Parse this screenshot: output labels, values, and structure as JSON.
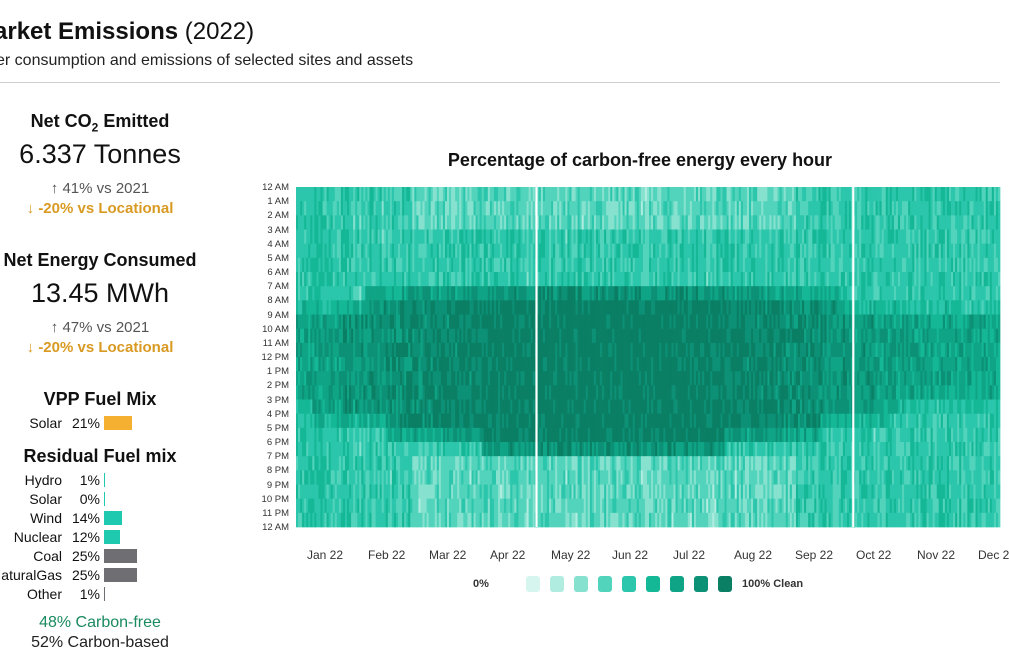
{
  "header": {
    "title_main": "arket Emissions",
    "title_year": "(2022)",
    "subtitle": "er consumption and emissions of selected sites and assets"
  },
  "kpis": {
    "co2": {
      "label_prefix": "Net CO",
      "label_sub": "2",
      "label_suffix": " Emitted",
      "value": "6.337 Tonnes",
      "yoy": "41% vs 2021",
      "locational": "-20% vs Locational"
    },
    "energy": {
      "label": "Net Energy Consumed",
      "value": "13.45 MWh",
      "yoy": "47% vs 2021",
      "locational": "-20% vs Locational"
    },
    "arrows": {
      "up": "↑",
      "down": "↓"
    }
  },
  "vpp_mix": {
    "title": "VPP Fuel Mix",
    "items": [
      {
        "name": "Solar",
        "pct": "21%",
        "value": 21,
        "color": "#f5b031"
      }
    ]
  },
  "residual_mix": {
    "title": "Residual Fuel mix",
    "items": [
      {
        "name": "Hydro",
        "pct": "1%",
        "value": 1,
        "color": "#1fc9b0"
      },
      {
        "name": "Solar",
        "pct": "0%",
        "value": 0,
        "color": "#1fc9b0"
      },
      {
        "name": "Wind",
        "pct": "14%",
        "value": 14,
        "color": "#1fc9b0"
      },
      {
        "name": "Nuclear",
        "pct": "12%",
        "value": 12,
        "color": "#1fc9b0"
      },
      {
        "name": "Coal",
        "pct": "25%",
        "value": 25,
        "color": "#6e6e73"
      },
      {
        "name": "aturalGas",
        "pct": "25%",
        "value": 25,
        "color": "#6e6e73"
      },
      {
        "name": "Other",
        "pct": "1%",
        "value": 1,
        "color": "#6e6e73"
      }
    ]
  },
  "carbon_summary": {
    "free": "48% Carbon-free",
    "based": "52% Carbon-based",
    "free_color": "#1a8a5f"
  },
  "chart_data": {
    "type": "heatmap",
    "title": "Percentage of carbon-free energy every hour",
    "y_categories": [
      "12 AM",
      "1 AM",
      "2 AM",
      "3 AM",
      "4 AM",
      "5 AM",
      "6 AM",
      "7 AM",
      "8 AM",
      "9 AM",
      "10 AM",
      "11 AM",
      "12 PM",
      "1 PM",
      "2 PM",
      "3 PM",
      "4 PM",
      "5 PM",
      "6 PM",
      "7 PM",
      "8 PM",
      "9 PM",
      "10 PM",
      "11 PM",
      "12 AM"
    ],
    "x_tick_labels": [
      "Jan 22",
      "Feb 22",
      "Mar 22",
      "Apr 22",
      "May 22",
      "Jun 22",
      "Jul 22",
      "Aug 22",
      "Sep 22",
      "Oct 22",
      "Nov 22",
      "Dec 2"
    ],
    "x_range_days": [
      1,
      365
    ],
    "color_scale": {
      "min_label": "0%",
      "max_label": "100% Clean",
      "colors": [
        "#d7f5ef",
        "#b0ece0",
        "#86e1cf",
        "#52d3bb",
        "#2bc6ab",
        "#14b796",
        "#0ea485",
        "#0c9076",
        "#0a7f64"
      ]
    },
    "pattern_summary": {
      "night_hours_clean_pct_range": [
        20,
        60
      ],
      "midday_hours_clean_pct_range": [
        80,
        100
      ],
      "peak_months": [
        "Apr 22",
        "May 22",
        "Jun 22",
        "Jul 22",
        "Aug 22"
      ]
    }
  }
}
